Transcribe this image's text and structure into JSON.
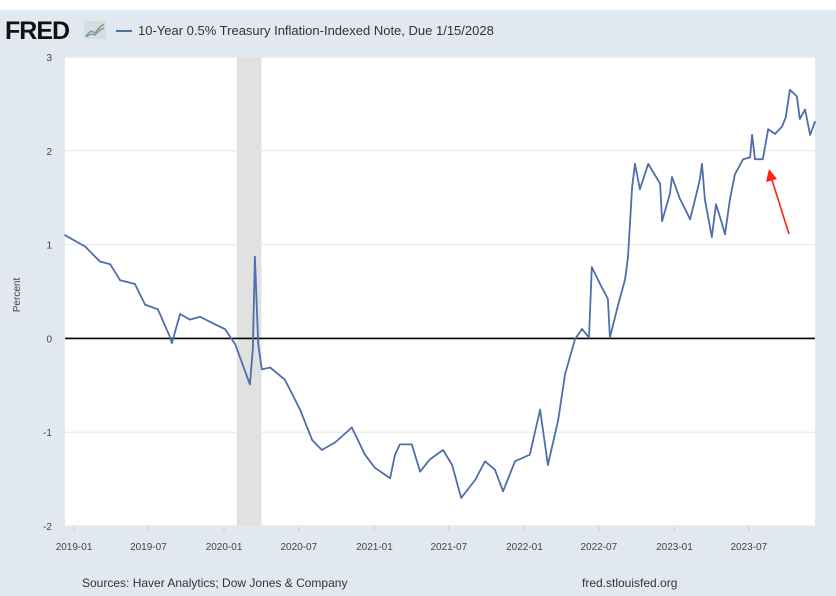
{
  "logo": {
    "text": "FRED"
  },
  "legend": {
    "series_label": "10-Year 0.5% Treasury Inflation-Indexed Note, Due 1/15/2028",
    "color": "#4e6fa8"
  },
  "footer": {
    "sources": "Sources: Haver Analytics; Dow Jones & Company",
    "site": "fred.stlouisfed.org"
  },
  "chart_data": {
    "type": "line",
    "title": "",
    "xlabel": "",
    "ylabel": "Percent",
    "xlim": [
      "2018-12-10",
      "2023-12-09"
    ],
    "ylim": [
      -2,
      3
    ],
    "yticks": [
      3,
      2,
      1,
      0,
      -1,
      -2
    ],
    "xticks": [
      "2019-01",
      "2019-07",
      "2020-01",
      "2020-07",
      "2021-01",
      "2021-07",
      "2022-01",
      "2022-07",
      "2023-01",
      "2023-07"
    ],
    "grid": true,
    "zero_line_color": "#000000",
    "recession_shading": [
      {
        "start": "2020-02-01",
        "end": "2020-04-01",
        "color": "#e1e1e1"
      }
    ],
    "annotations": [
      {
        "type": "arrow",
        "color": "#ff0000",
        "points_to": "2023-08"
      }
    ],
    "series": [
      {
        "name": "10-Year 0.5% Treasury Inflation-Indexed Note, Due 1/15/2028",
        "color": "#4e6fa8",
        "x": [
          "2018-12-10",
          "2019-01-28",
          "2019-03-05",
          "2019-03-30",
          "2019-04-23",
          "2019-05-29",
          "2019-06-23",
          "2019-07-24",
          "2019-08-23",
          "2019-08-27",
          "2019-09-16",
          "2019-10-10",
          "2019-11-04",
          "2019-12-10",
          "2020-01-03",
          "2020-01-28",
          "2020-03-04",
          "2020-03-11",
          "2020-03-16",
          "2020-03-24",
          "2020-04-02",
          "2020-04-22",
          "2020-05-28",
          "2020-07-04",
          "2020-08-02",
          "2020-08-26",
          "2020-09-27",
          "2020-11-07",
          "2020-12-09",
          "2021-01-02",
          "2021-02-08",
          "2021-02-20",
          "2021-03-04",
          "2021-04-02",
          "2021-04-22",
          "2021-05-16",
          "2021-06-17",
          "2021-07-09",
          "2021-07-31",
          "2021-09-03",
          "2021-09-27",
          "2021-10-21",
          "2021-11-10",
          "2021-12-09",
          "2022-01-14",
          "2022-02-08",
          "2022-02-27",
          "2022-03-24",
          "2022-04-10",
          "2022-05-04",
          "2022-05-21",
          "2022-06-07",
          "2022-06-14",
          "2022-07-04",
          "2022-07-23",
          "2022-07-28",
          "2022-08-17",
          "2022-09-03",
          "2022-09-10",
          "2022-09-20",
          "2022-09-27",
          "2022-10-09",
          "2022-10-29",
          "2022-11-27",
          "2022-12-02",
          "2022-12-21",
          "2022-12-26",
          "2023-01-14",
          "2023-01-27",
          "2023-02-08",
          "2023-02-25",
          "2023-03-04",
          "2023-03-09",
          "2023-03-16",
          "2023-04-02",
          "2023-04-12",
          "2023-04-27",
          "2023-05-04",
          "2023-05-16",
          "2023-05-28",
          "2023-06-17",
          "2023-07-04",
          "2023-07-09",
          "2023-07-16",
          "2023-08-04",
          "2023-08-17",
          "2023-09-03",
          "2023-09-20",
          "2023-09-29",
          "2023-10-09",
          "2023-10-26",
          "2023-11-02",
          "2023-11-15",
          "2023-11-27",
          "2023-12-09"
        ],
        "y": [
          1.1,
          0.98,
          0.82,
          0.79,
          0.62,
          0.58,
          0.36,
          0.31,
          0.01,
          -0.05,
          0.26,
          0.2,
          0.23,
          0.15,
          0.1,
          -0.06,
          -0.49,
          -0.12,
          0.87,
          -0.06,
          -0.33,
          -0.31,
          -0.44,
          -0.76,
          -1.08,
          -1.19,
          -1.11,
          -0.95,
          -1.24,
          -1.38,
          -1.49,
          -1.24,
          -1.13,
          -1.13,
          -1.42,
          -1.29,
          -1.19,
          -1.35,
          -1.7,
          -1.51,
          -1.31,
          -1.4,
          -1.63,
          -1.31,
          -1.24,
          -0.76,
          -1.35,
          -0.87,
          -0.38,
          -0.01,
          0.1,
          0.01,
          0.76,
          0.58,
          0.42,
          0.01,
          0.36,
          0.63,
          0.87,
          1.61,
          1.86,
          1.59,
          1.86,
          1.65,
          1.25,
          1.54,
          1.72,
          1.49,
          1.38,
          1.27,
          1.57,
          1.7,
          1.86,
          1.48,
          1.08,
          1.43,
          1.22,
          1.11,
          1.48,
          1.75,
          1.91,
          1.93,
          2.17,
          1.91,
          1.91,
          2.23,
          2.18,
          2.26,
          2.36,
          2.65,
          2.58,
          2.34,
          2.44,
          2.17,
          2.31
        ]
      }
    ]
  }
}
